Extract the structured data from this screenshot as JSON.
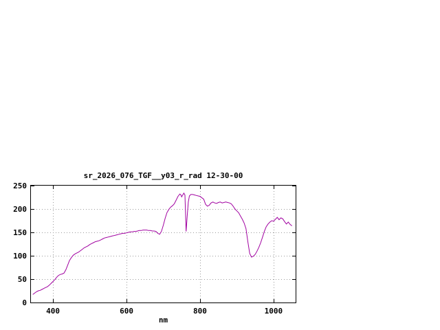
{
  "window": {
    "background": "#ffffff"
  },
  "chart_data": {
    "type": "line",
    "title": "sr_2026_076_TGF__y03_r_rad 12-30-00",
    "xlabel": "nm",
    "ylabel": "",
    "xlim": [
      340,
      1060
    ],
    "ylim": [
      0,
      250
    ],
    "xticks": [
      400,
      600,
      800,
      1000
    ],
    "yticks": [
      0,
      50,
      100,
      150,
      200,
      250
    ],
    "grid": true,
    "legend_position": "none",
    "line_color": "#a000a0",
    "grid_color": "#999999",
    "border_color": "#000000",
    "series": [
      {
        "name": "sr_2026_076_TGF__y03_r_rad",
        "points": [
          [
            345,
            17
          ],
          [
            350,
            20
          ],
          [
            355,
            23
          ],
          [
            360,
            25
          ],
          [
            365,
            26
          ],
          [
            370,
            28
          ],
          [
            375,
            30
          ],
          [
            380,
            32
          ],
          [
            385,
            34
          ],
          [
            390,
            37
          ],
          [
            395,
            41
          ],
          [
            400,
            45
          ],
          [
            405,
            49
          ],
          [
            410,
            54
          ],
          [
            415,
            58
          ],
          [
            420,
            60
          ],
          [
            425,
            61
          ],
          [
            430,
            63
          ],
          [
            435,
            70
          ],
          [
            440,
            80
          ],
          [
            445,
            90
          ],
          [
            450,
            96
          ],
          [
            455,
            101
          ],
          [
            460,
            104
          ],
          [
            465,
            106
          ],
          [
            470,
            108
          ],
          [
            475,
            111
          ],
          [
            480,
            114
          ],
          [
            485,
            117
          ],
          [
            490,
            119
          ],
          [
            495,
            121
          ],
          [
            500,
            124
          ],
          [
            505,
            126
          ],
          [
            510,
            128
          ],
          [
            515,
            130
          ],
          [
            520,
            131
          ],
          [
            525,
            132
          ],
          [
            530,
            134
          ],
          [
            535,
            136
          ],
          [
            540,
            138
          ],
          [
            545,
            139
          ],
          [
            550,
            140
          ],
          [
            555,
            141
          ],
          [
            560,
            142
          ],
          [
            565,
            143
          ],
          [
            570,
            144
          ],
          [
            575,
            145
          ],
          [
            580,
            146
          ],
          [
            585,
            147
          ],
          [
            590,
            148
          ],
          [
            595,
            148
          ],
          [
            600,
            149
          ],
          [
            605,
            150
          ],
          [
            610,
            151
          ],
          [
            615,
            151
          ],
          [
            620,
            152
          ],
          [
            625,
            152
          ],
          [
            630,
            153
          ],
          [
            635,
            154
          ],
          [
            640,
            154
          ],
          [
            645,
            155
          ],
          [
            650,
            155
          ],
          [
            655,
            155
          ],
          [
            660,
            154
          ],
          [
            665,
            154
          ],
          [
            670,
            153
          ],
          [
            675,
            153
          ],
          [
            680,
            152
          ],
          [
            685,
            148
          ],
          [
            690,
            146
          ],
          [
            695,
            152
          ],
          [
            700,
            165
          ],
          [
            705,
            180
          ],
          [
            710,
            192
          ],
          [
            715,
            199
          ],
          [
            720,
            204
          ],
          [
            725,
            207
          ],
          [
            730,
            211
          ],
          [
            735,
            219
          ],
          [
            740,
            227
          ],
          [
            745,
            232
          ],
          [
            748,
            230
          ],
          [
            750,
            226
          ],
          [
            753,
            230
          ],
          [
            756,
            234
          ],
          [
            759,
            230
          ],
          [
            762,
            152
          ],
          [
            765,
            185
          ],
          [
            768,
            215
          ],
          [
            771,
            228
          ],
          [
            775,
            231
          ],
          [
            780,
            231
          ],
          [
            785,
            230
          ],
          [
            790,
            229
          ],
          [
            795,
            228
          ],
          [
            800,
            227
          ],
          [
            805,
            224
          ],
          [
            810,
            221
          ],
          [
            815,
            210
          ],
          [
            820,
            206
          ],
          [
            825,
            208
          ],
          [
            830,
            213
          ],
          [
            835,
            215
          ],
          [
            840,
            213
          ],
          [
            845,
            212
          ],
          [
            850,
            214
          ],
          [
            855,
            215
          ],
          [
            860,
            213
          ],
          [
            865,
            214
          ],
          [
            870,
            215
          ],
          [
            875,
            214
          ],
          [
            880,
            213
          ],
          [
            885,
            211
          ],
          [
            890,
            206
          ],
          [
            895,
            200
          ],
          [
            900,
            196
          ],
          [
            905,
            192
          ],
          [
            910,
            185
          ],
          [
            915,
            178
          ],
          [
            920,
            170
          ],
          [
            925,
            158
          ],
          [
            930,
            130
          ],
          [
            935,
            105
          ],
          [
            940,
            97
          ],
          [
            945,
            99
          ],
          [
            950,
            103
          ],
          [
            955,
            110
          ],
          [
            960,
            118
          ],
          [
            965,
            128
          ],
          [
            970,
            140
          ],
          [
            975,
            152
          ],
          [
            980,
            162
          ],
          [
            985,
            168
          ],
          [
            990,
            172
          ],
          [
            995,
            175
          ],
          [
            1000,
            174
          ],
          [
            1005,
            178
          ],
          [
            1010,
            182
          ],
          [
            1015,
            177
          ],
          [
            1020,
            181
          ],
          [
            1025,
            179
          ],
          [
            1030,
            173
          ],
          [
            1035,
            168
          ],
          [
            1040,
            172
          ],
          [
            1045,
            167
          ],
          [
            1050,
            164
          ]
        ]
      }
    ]
  }
}
